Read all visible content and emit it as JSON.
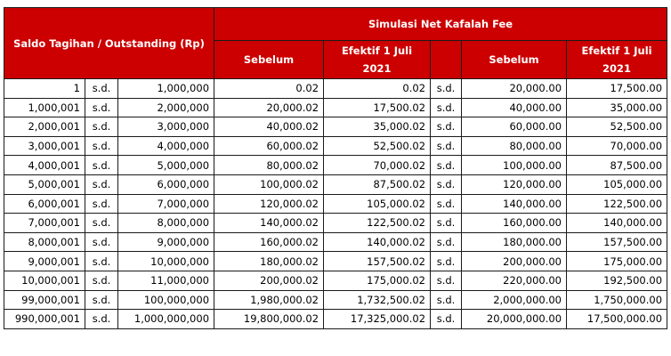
{
  "header": {
    "saldo_label": "Saldo Tagihan / Outstanding (Rp)",
    "simulasi_label": "Simulasi Net Kafalah Fee",
    "sebelum_label": "Sebelum",
    "efektif_label": "Efektif 1 Juli",
    "efektif_year": "2021"
  },
  "rows": [
    {
      "from": "1",
      "sd": "s.d.",
      "to": "1,000,000",
      "a": "0.02",
      "b": "0.02",
      "sd2": "s.d.",
      "c": "20,000.00",
      "d": "17,500.00"
    },
    {
      "from": "1,000,001",
      "sd": "s.d.",
      "to": "2,000,000",
      "a": "20,000.02",
      "b": "17,500.02",
      "sd2": "s.d.",
      "c": "40,000.00",
      "d": "35,000.00"
    },
    {
      "from": "2,000,001",
      "sd": "s.d.",
      "to": "3,000,000",
      "a": "40,000.02",
      "b": "35,000.02",
      "sd2": "s.d.",
      "c": "60,000.00",
      "d": "52,500.00"
    },
    {
      "from": "3,000,001",
      "sd": "s.d.",
      "to": "4,000,000",
      "a": "60,000.02",
      "b": "52,500.02",
      "sd2": "s.d.",
      "c": "80,000.00",
      "d": "70,000.00"
    },
    {
      "from": "4,000,001",
      "sd": "s.d.",
      "to": "5,000,000",
      "a": "80,000.02",
      "b": "70,000.02",
      "sd2": "s.d.",
      "c": "100,000.00",
      "d": "87,500.00"
    },
    {
      "from": "5,000,001",
      "sd": "s.d.",
      "to": "6,000,000",
      "a": "100,000.02",
      "b": "87,500.02",
      "sd2": "s.d.",
      "c": "120,000.00",
      "d": "105,000.00"
    },
    {
      "from": "6,000,001",
      "sd": "s.d.",
      "to": "7,000,000",
      "a": "120,000.02",
      "b": "105,000.02",
      "sd2": "s.d.",
      "c": "140,000.00",
      "d": "122,500.00"
    },
    {
      "from": "7,000,001",
      "sd": "s.d.",
      "to": "8,000,000",
      "a": "140,000.02",
      "b": "122,500.02",
      "sd2": "s.d.",
      "c": "160,000.00",
      "d": "140,000.00"
    },
    {
      "from": "8,000,001",
      "sd": "s.d.",
      "to": "9,000,000",
      "a": "160,000.02",
      "b": "140,000.02",
      "sd2": "s.d.",
      "c": "180,000.00",
      "d": "157,500.00"
    },
    {
      "from": "9,000,001",
      "sd": "s.d.",
      "to": "10,000,000",
      "a": "180,000.02",
      "b": "157,500.02",
      "sd2": "s.d.",
      "c": "200,000.00",
      "d": "175,000.00"
    },
    {
      "from": "10,000,001",
      "sd": "s.d.",
      "to": "11,000,000",
      "a": "200,000.02",
      "b": "175,000.02",
      "sd2": "s.d.",
      "c": "220,000.00",
      "d": "192,500.00"
    },
    {
      "from": "99,000,001",
      "sd": "s.d.",
      "to": "100,000,000",
      "a": "1,980,000.02",
      "b": "1,732,500.02",
      "sd2": "s.d.",
      "c": "2,000,000.00",
      "d": "1,750,000.00"
    },
    {
      "from": "990,000,001",
      "sd": "s.d.",
      "to": "1,000,000,000",
      "a": "19,800,000.02",
      "b": "17,325,000.02",
      "sd2": "s.d.",
      "c": "20,000,000.00",
      "d": "17,500,000.00"
    }
  ]
}
